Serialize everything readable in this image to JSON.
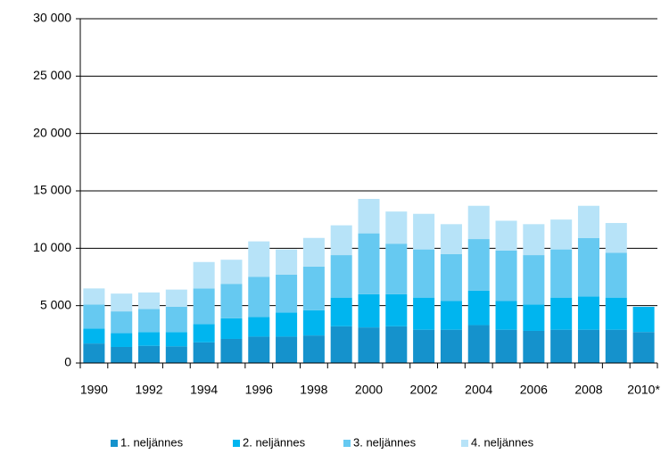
{
  "chart_data": {
    "type": "stacked_bar",
    "categories": [
      "1990",
      null,
      "1992",
      null,
      "1994",
      null,
      "1996",
      null,
      "1998",
      null,
      "2000",
      null,
      "2002",
      null,
      "2004",
      null,
      "2006",
      null,
      "2008",
      null,
      "2010*"
    ],
    "series": [
      {
        "name": "1. neljännes",
        "color": "#1592cc",
        "values": [
          1700,
          1400,
          1500,
          1450,
          1800,
          2100,
          2300,
          2300,
          2400,
          3200,
          3100,
          3200,
          2900,
          2900,
          3300,
          2900,
          2800,
          2900,
          2900,
          2900,
          2700
        ]
      },
      {
        "name": "2. neljännes",
        "color": "#00b5ef",
        "values": [
          1300,
          1200,
          1200,
          1250,
          1600,
          1800,
          1700,
          2100,
          2200,
          2500,
          2900,
          2800,
          2800,
          2500,
          3000,
          2500,
          2300,
          2800,
          2900,
          2800,
          2200
        ]
      },
      {
        "name": "3. neljännes",
        "color": "#66c9f1",
        "values": [
          2100,
          1900,
          2000,
          2200,
          3100,
          3000,
          3500,
          3300,
          3800,
          3700,
          5300,
          4400,
          4200,
          4100,
          4500,
          4400,
          4300,
          4200,
          5100,
          3900,
          null
        ]
      },
      {
        "name": "4. neljännes",
        "color": "#b7e3f8",
        "values": [
          1400,
          1550,
          1450,
          1500,
          2300,
          2100,
          3100,
          2200,
          2500,
          2600,
          3000,
          2800,
          3100,
          2600,
          2900,
          2600,
          2700,
          2600,
          2800,
          2600,
          null
        ]
      }
    ],
    "ylim": [
      0,
      30000
    ],
    "yticks": [
      0,
      {
        "value": 5000,
        "label": "5 000"
      },
      {
        "value": 10000,
        "label": "10 000"
      },
      {
        "value": 15000,
        "label": "15 000"
      },
      {
        "value": 20000,
        "label": "20 000"
      },
      {
        "value": 25000,
        "label": "25 000"
      },
      {
        "value": 30000,
        "label": "30 000"
      }
    ],
    "grid": true,
    "legend": "bottom"
  }
}
